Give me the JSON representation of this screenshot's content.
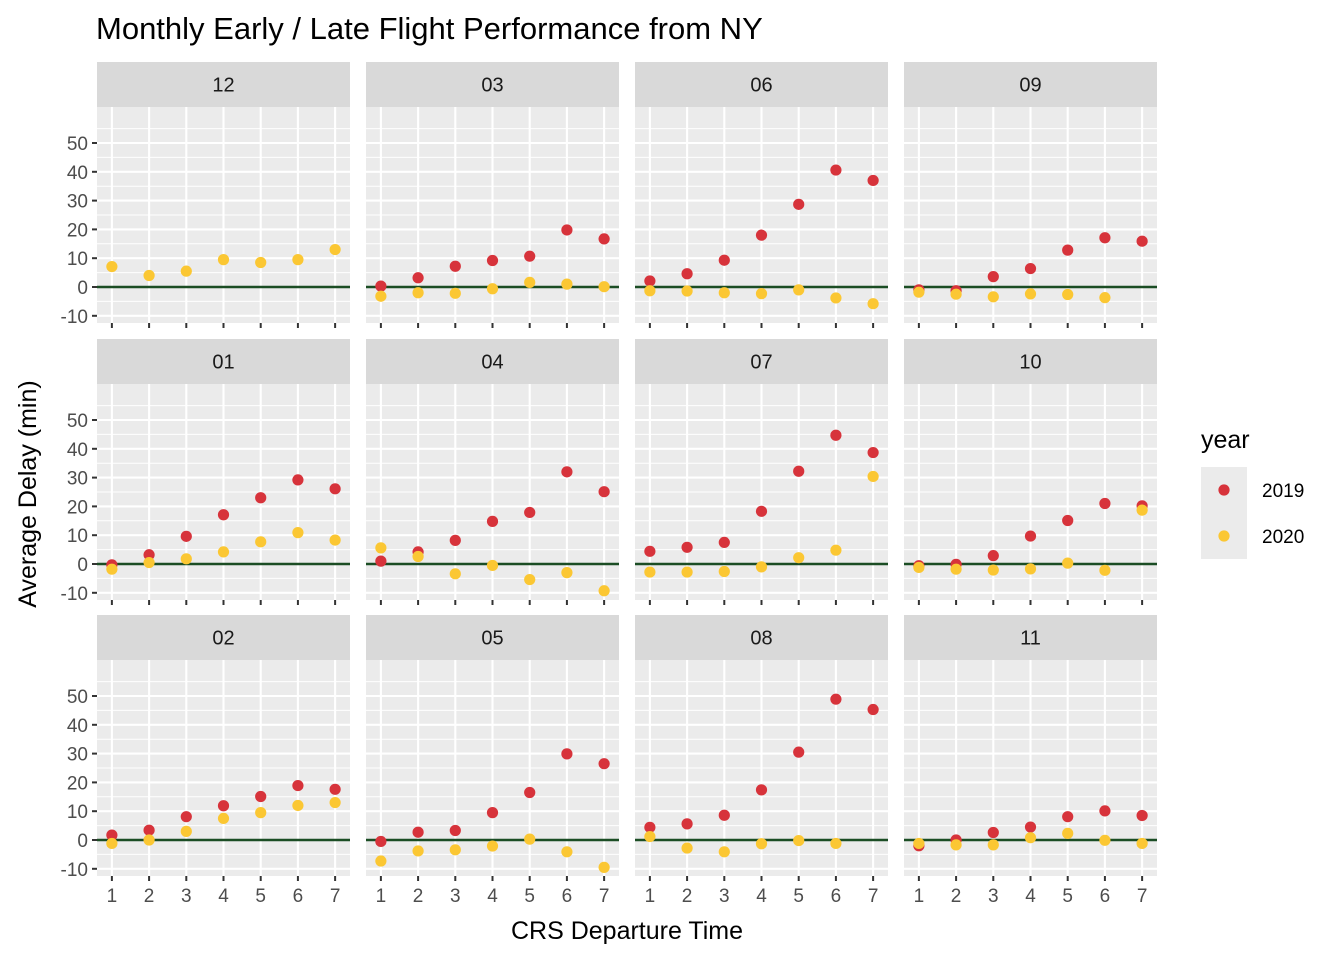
{
  "chart_data": {
    "type": "scatter",
    "title": "Monthly Early / Late Flight Performance from NY",
    "xlabel": "CRS Departure Time",
    "ylabel": "Average Delay (min)",
    "x": [
      1,
      2,
      3,
      4,
      5,
      6,
      7
    ],
    "x_ticks": [
      "1",
      "2",
      "3",
      "4",
      "5",
      "6",
      "7"
    ],
    "y_ticks": [
      "-10",
      "0",
      "10",
      "20",
      "30",
      "40",
      "50"
    ],
    "xlim": [
      0.6,
      7.4
    ],
    "ylim": [
      -12.5,
      62.5
    ],
    "reference_line": {
      "y": 0,
      "color": "#1b4d24"
    },
    "grid": true,
    "legend": {
      "title": "year",
      "placement": "right",
      "entries": [
        {
          "label": "2019",
          "color": "#d7333b"
        },
        {
          "label": "2020",
          "color": "#fbc733"
        }
      ]
    },
    "facets": [
      {
        "label": "12",
        "series": [
          {
            "name": "2019",
            "values": []
          },
          {
            "name": "2020",
            "values": [
              7.1,
              4.0,
              5.5,
              9.5,
              8.5,
              9.5,
              13.0
            ]
          }
        ]
      },
      {
        "label": "03",
        "series": [
          {
            "name": "2019",
            "values": [
              0.3,
              3.2,
              7.2,
              9.2,
              10.7,
              19.8,
              16.7
            ]
          },
          {
            "name": "2020",
            "values": [
              -3.2,
              -2.0,
              -2.2,
              -0.6,
              1.6,
              1.0,
              0.1
            ]
          }
        ]
      },
      {
        "label": "06",
        "series": [
          {
            "name": "2019",
            "values": [
              2.1,
              4.6,
              9.3,
              18.0,
              28.7,
              40.6,
              37.0
            ]
          },
          {
            "name": "2020",
            "values": [
              -1.3,
              -1.4,
              -2.0,
              -2.3,
              -1.0,
              -3.8,
              -5.8
            ]
          }
        ]
      },
      {
        "label": "09",
        "series": [
          {
            "name": "2019",
            "values": [
              -1.0,
              -1.3,
              3.6,
              6.4,
              12.8,
              17.1,
              15.9
            ]
          },
          {
            "name": "2020",
            "values": [
              -1.8,
              -2.5,
              -3.4,
              -2.4,
              -2.6,
              -3.7,
              null
            ]
          }
        ]
      },
      {
        "label": "01",
        "series": [
          {
            "name": "2019",
            "values": [
              -0.3,
              3.2,
              9.6,
              17.1,
              23.0,
              29.2,
              26.1
            ]
          },
          {
            "name": "2020",
            "values": [
              -1.8,
              0.5,
              1.8,
              4.2,
              7.7,
              10.9,
              8.3
            ]
          }
        ]
      },
      {
        "label": "04",
        "series": [
          {
            "name": "2019",
            "values": [
              1.0,
              4.2,
              8.2,
              14.8,
              17.9,
              32.0,
              25.1
            ]
          },
          {
            "name": "2020",
            "values": [
              5.6,
              2.6,
              -3.4,
              -0.5,
              -5.4,
              -3.0,
              -9.3
            ]
          }
        ]
      },
      {
        "label": "07",
        "series": [
          {
            "name": "2019",
            "values": [
              4.4,
              5.8,
              7.5,
              18.3,
              32.2,
              44.7,
              38.7
            ]
          },
          {
            "name": "2020",
            "values": [
              -2.8,
              -2.8,
              -2.6,
              -1.0,
              2.2,
              4.8,
              30.4
            ]
          }
        ]
      },
      {
        "label": "10",
        "series": [
          {
            "name": "2019",
            "values": [
              -0.6,
              -0.1,
              2.9,
              9.7,
              15.1,
              21.0,
              20.2
            ]
          },
          {
            "name": "2020",
            "values": [
              -1.2,
              -1.8,
              -2.1,
              -1.7,
              0.3,
              -2.2,
              18.7
            ]
          }
        ]
      },
      {
        "label": "02",
        "series": [
          {
            "name": "2019",
            "values": [
              1.7,
              3.4,
              8.1,
              11.9,
              15.1,
              18.9,
              17.6
            ]
          },
          {
            "name": "2020",
            "values": [
              -1.2,
              0.0,
              3.0,
              7.5,
              9.5,
              12.0,
              13.0
            ]
          }
        ]
      },
      {
        "label": "05",
        "series": [
          {
            "name": "2019",
            "values": [
              -0.5,
              2.7,
              3.3,
              9.5,
              16.5,
              29.9,
              26.5
            ]
          },
          {
            "name": "2020",
            "values": [
              -7.3,
              -3.8,
              -3.4,
              -2.1,
              0.3,
              -4.1,
              -9.5
            ]
          }
        ]
      },
      {
        "label": "08",
        "series": [
          {
            "name": "2019",
            "values": [
              4.4,
              5.6,
              8.6,
              17.4,
              30.5,
              48.9,
              45.3
            ]
          },
          {
            "name": "2020",
            "values": [
              1.2,
              -2.8,
              -4.1,
              -1.3,
              -0.2,
              -1.2,
              null
            ]
          }
        ]
      },
      {
        "label": "11",
        "series": [
          {
            "name": "2019",
            "values": [
              -2.0,
              0.0,
              2.6,
              4.5,
              8.1,
              10.1,
              8.5
            ]
          },
          {
            "name": "2020",
            "values": [
              -1.2,
              -1.7,
              -1.7,
              0.8,
              2.3,
              -0.1,
              -1.2
            ]
          }
        ]
      }
    ]
  }
}
